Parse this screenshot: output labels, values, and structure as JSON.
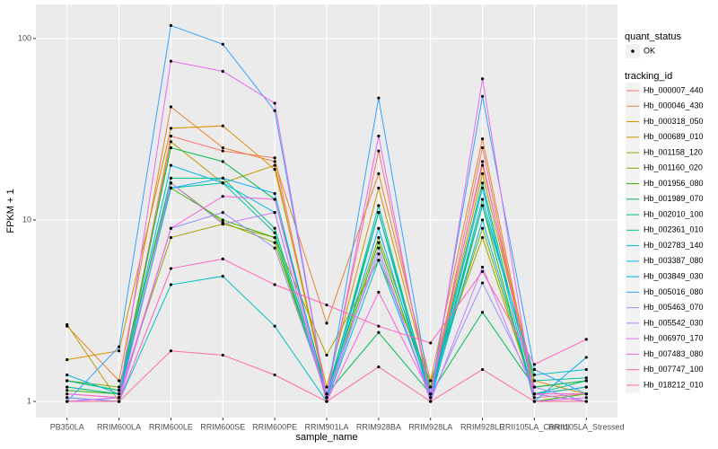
{
  "chart_data": {
    "type": "line",
    "x_label": "sample_name",
    "y_label": "FPKM + 1",
    "log_y": true,
    "grid": true,
    "ylim": [
      0.815,
      154
    ],
    "yticks": [
      1,
      10,
      100
    ],
    "categories": [
      "PB350LA",
      "RRIM600LA",
      "RRIM600LE",
      "RRIM600SE",
      "RRIM600PE",
      "RRIM901LA",
      "RRIM928BA",
      "RRIM928LA",
      "RRIM928LE",
      "RRII105LA_Control",
      "RRII105LA_Stressed"
    ],
    "shape_legend": {
      "title": "quant_status",
      "labels": [
        "OK"
      ]
    },
    "legend_title": "tracking_id",
    "legend_position": "right",
    "series": [
      {
        "name": "Hb_000007_440",
        "color": "#F8766D",
        "values": [
          1.1,
          1.05,
          29,
          24,
          22,
          1.1,
          24,
          1.1,
          25,
          1.05,
          1.1
        ]
      },
      {
        "name": "Hb_000046_430",
        "color": "#EA8331",
        "values": [
          2.6,
          1.3,
          42,
          25,
          21,
          2.7,
          18,
          1.3,
          28,
          1.1,
          1.2
        ]
      },
      {
        "name": "Hb_000318_050",
        "color": "#D89000",
        "values": [
          1.7,
          1.9,
          32,
          33,
          19,
          1.2,
          15,
          1.2,
          20,
          1.3,
          1.1
        ]
      },
      {
        "name": "Hb_000689_010",
        "color": "#C09B00",
        "values": [
          2.65,
          1.0,
          27,
          16,
          20,
          1.1,
          11,
          1.1,
          18,
          1.2,
          1.3
        ]
      },
      {
        "name": "Hb_001158_120",
        "color": "#A3A500",
        "values": [
          1.2,
          1.1,
          8,
          9.5,
          8,
          1.8,
          6,
          1.3,
          8,
          1.1,
          1.2
        ]
      },
      {
        "name": "Hb_001160_020",
        "color": "#7CAE00",
        "values": [
          1.3,
          1.2,
          16,
          9.7,
          7.5,
          1.1,
          8,
          1.2,
          9,
          1.1,
          1.0
        ]
      },
      {
        "name": "Hb_001956_080",
        "color": "#39B600",
        "values": [
          1.15,
          1.1,
          15,
          10,
          8,
          1.05,
          7.5,
          1.1,
          12,
          1.0,
          1.1
        ]
      },
      {
        "name": "Hb_001989_070",
        "color": "#00BB4E",
        "values": [
          1.3,
          1.15,
          25,
          21,
          13,
          1.1,
          2.4,
          1.1,
          3.1,
          1.2,
          1.3
        ]
      },
      {
        "name": "Hb_002010_100",
        "color": "#00BF7D",
        "values": [
          1.3,
          1.15,
          17,
          17,
          9,
          1.1,
          11,
          1.1,
          16,
          1.1,
          1.3
        ]
      },
      {
        "name": "Hb_002361_010",
        "color": "#00C1A3",
        "values": [
          1.2,
          1.1,
          15,
          16,
          8.5,
          1.05,
          12,
          1.05,
          13,
          1.3,
          1.35
        ]
      },
      {
        "name": "Hb_002783_140",
        "color": "#00BFC4",
        "values": [
          1.05,
          1.0,
          4.4,
          4.9,
          2.6,
          1.0,
          11,
          1.0,
          12,
          1.4,
          1.5
        ]
      },
      {
        "name": "Hb_003387_080",
        "color": "#00BAE0",
        "values": [
          1.4,
          1.1,
          20,
          16,
          11,
          1.0,
          6,
          1.05,
          10,
          1.1,
          1.2
        ]
      },
      {
        "name": "Hb_003849_030",
        "color": "#00B0F6",
        "values": [
          1.0,
          1.05,
          15,
          17,
          14,
          1.05,
          9,
          1.05,
          15,
          1.0,
          1.75
        ]
      },
      {
        "name": "Hb_005016_080",
        "color": "#35A2FF",
        "values": [
          1.0,
          2.0,
          118,
          93,
          40,
          1.05,
          47,
          1.1,
          48,
          1.5,
          1.1
        ]
      },
      {
        "name": "Hb_005463_070",
        "color": "#9590FF",
        "values": [
          1.05,
          1.0,
          9,
          11,
          7,
          1.1,
          6.5,
          1.05,
          4.5,
          1.2,
          1.0
        ]
      },
      {
        "name": "Hb_005542_030",
        "color": "#C77CFF",
        "values": [
          1.0,
          1.0,
          16,
          9.5,
          11,
          1.0,
          7,
          1.0,
          5.5,
          1.1,
          1.0
        ]
      },
      {
        "name": "Hb_006970_170",
        "color": "#E76BF3",
        "values": [
          1.0,
          1.05,
          75,
          66,
          44,
          1.05,
          29,
          1.0,
          60,
          1.0,
          1.05
        ]
      },
      {
        "name": "Hb_007483_080",
        "color": "#FA62DB",
        "values": [
          1.1,
          1.05,
          9,
          13.5,
          13,
          1.0,
          4,
          1.1,
          21,
          1.1,
          1.1
        ]
      },
      {
        "name": "Hb_007747_100",
        "color": "#FF62BC",
        "values": [
          1.0,
          1.0,
          5.4,
          6.1,
          4.4,
          3.4,
          2.6,
          2.1,
          5.2,
          1.6,
          2.2
        ]
      },
      {
        "name": "Hb_018212_010",
        "color": "#FF6A98",
        "values": [
          1.0,
          1.0,
          1.9,
          1.8,
          1.4,
          1.0,
          1.55,
          1.0,
          1.5,
          1.0,
          1.0
        ]
      }
    ]
  }
}
